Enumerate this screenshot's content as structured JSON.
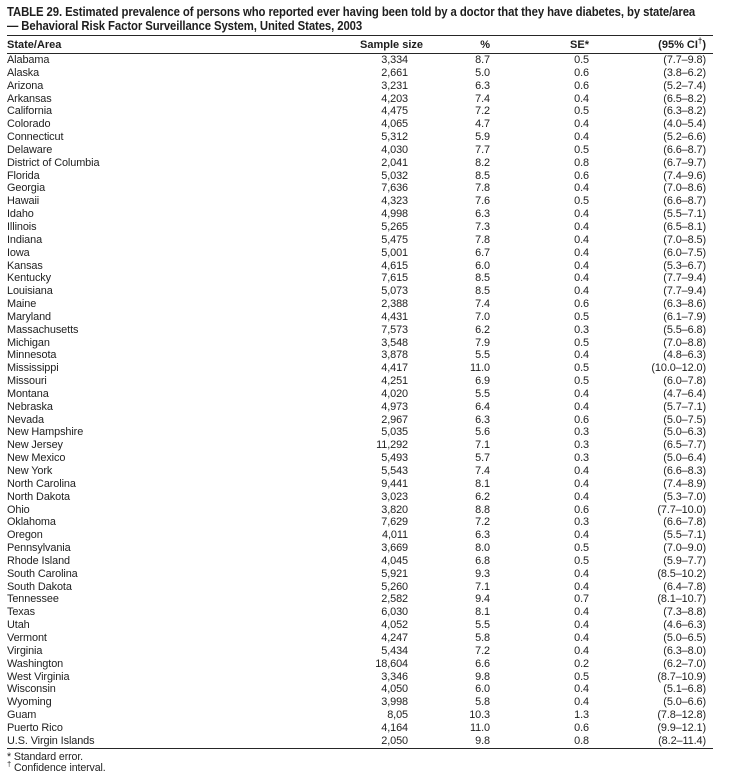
{
  "document": {
    "title_line1": "TABLE 29. Estimated prevalence of persons who reported ever having been told by a doctor that they have diabetes, by state/area",
    "title_line2": "— Behavioral Risk Factor Surveillance System, United States, 2003"
  },
  "table": {
    "columns": [
      "State/Area",
      "Sample size",
      "%",
      "SE*",
      "(95% CI†)"
    ],
    "rows": [
      [
        "Alabama",
        "3,334",
        "8.7",
        "0.5",
        "(7.7–9.8)"
      ],
      [
        "Alaska",
        "2,661",
        "5.0",
        "0.6",
        "(3.8–6.2)"
      ],
      [
        "Arizona",
        "3,231",
        "6.3",
        "0.6",
        "(5.2–7.4)"
      ],
      [
        "Arkansas",
        "4,203",
        "7.4",
        "0.4",
        "(6.5–8.2)"
      ],
      [
        "California",
        "4,475",
        "7.2",
        "0.5",
        "(6.3–8.2)"
      ],
      [
        "Colorado",
        "4,065",
        "4.7",
        "0.4",
        "(4.0–5.4)"
      ],
      [
        "Connecticut",
        "5,312",
        "5.9",
        "0.4",
        "(5.2–6.6)"
      ],
      [
        "Delaware",
        "4,030",
        "7.7",
        "0.5",
        "(6.6–8.7)"
      ],
      [
        "District of Columbia",
        "2,041",
        "8.2",
        "0.8",
        "(6.7–9.7)"
      ],
      [
        "Florida",
        "5,032",
        "8.5",
        "0.6",
        "(7.4–9.6)"
      ],
      [
        "Georgia",
        "7,636",
        "7.8",
        "0.4",
        "(7.0–8.6)"
      ],
      [
        "Hawaii",
        "4,323",
        "7.6",
        "0.5",
        "(6.6–8.7)"
      ],
      [
        "Idaho",
        "4,998",
        "6.3",
        "0.4",
        "(5.5–7.1)"
      ],
      [
        "Illinois",
        "5,265",
        "7.3",
        "0.4",
        "(6.5–8.1)"
      ],
      [
        "Indiana",
        "5,475",
        "7.8",
        "0.4",
        "(7.0–8.5)"
      ],
      [
        "Iowa",
        "5,001",
        "6.7",
        "0.4",
        "(6.0–7.5)"
      ],
      [
        "Kansas",
        "4,615",
        "6.0",
        "0.4",
        "(5.3–6.7)"
      ],
      [
        "Kentucky",
        "7,615",
        "8.5",
        "0.4",
        "(7.7–9.4)"
      ],
      [
        "Louisiana",
        "5,073",
        "8.5",
        "0.4",
        "(7.7–9.4)"
      ],
      [
        "Maine",
        "2,388",
        "7.4",
        "0.6",
        "(6.3–8.6)"
      ],
      [
        "Maryland",
        "4,431",
        "7.0",
        "0.5",
        "(6.1–7.9)"
      ],
      [
        "Massachusetts",
        "7,573",
        "6.2",
        "0.3",
        "(5.5–6.8)"
      ],
      [
        "Michigan",
        "3,548",
        "7.9",
        "0.5",
        "(7.0–8.8)"
      ],
      [
        "Minnesota",
        "3,878",
        "5.5",
        "0.4",
        "(4.8–6.3)"
      ],
      [
        "Mississippi",
        "4,417",
        "11.0",
        "0.5",
        "(10.0–12.0)"
      ],
      [
        "Missouri",
        "4,251",
        "6.9",
        "0.5",
        "(6.0–7.8)"
      ],
      [
        "Montana",
        "4,020",
        "5.5",
        "0.4",
        "(4.7–6.4)"
      ],
      [
        "Nebraska",
        "4,973",
        "6.4",
        "0.4",
        "(5.7–7.1)"
      ],
      [
        "Nevada",
        "2,967",
        "6.3",
        "0.6",
        "(5.0–7.5)"
      ],
      [
        "New Hampshire",
        "5,035",
        "5.6",
        "0.3",
        "(5.0–6.3)"
      ],
      [
        "New Jersey",
        "11,292",
        "7.1",
        "0.3",
        "(6.5–7.7)"
      ],
      [
        "New Mexico",
        "5,493",
        "5.7",
        "0.3",
        "(5.0–6.4)"
      ],
      [
        "New York",
        "5,543",
        "7.4",
        "0.4",
        "(6.6–8.3)"
      ],
      [
        "North Carolina",
        "9,441",
        "8.1",
        "0.4",
        "(7.4–8.9)"
      ],
      [
        "North Dakota",
        "3,023",
        "6.2",
        "0.4",
        "(5.3–7.0)"
      ],
      [
        "Ohio",
        "3,820",
        "8.8",
        "0.6",
        "(7.7–10.0)"
      ],
      [
        "Oklahoma",
        "7,629",
        "7.2",
        "0.3",
        "(6.6–7.8)"
      ],
      [
        "Oregon",
        "4,011",
        "6.3",
        "0.4",
        "(5.5–7.1)"
      ],
      [
        "Pennsylvania",
        "3,669",
        "8.0",
        "0.5",
        "(7.0–9.0)"
      ],
      [
        "Rhode Island",
        "4,045",
        "6.8",
        "0.5",
        "(5.9–7.7)"
      ],
      [
        "South Carolina",
        "5,921",
        "9.3",
        "0.4",
        "(8.5–10.2)"
      ],
      [
        "South Dakota",
        "5,260",
        "7.1",
        "0.4",
        "(6.4–7.8)"
      ],
      [
        "Tennessee",
        "2,582",
        "9.4",
        "0.7",
        "(8.1–10.7)"
      ],
      [
        "Texas",
        "6,030",
        "8.1",
        "0.4",
        "(7.3–8.8)"
      ],
      [
        "Utah",
        "4,052",
        "5.5",
        "0.4",
        "(4.6–6.3)"
      ],
      [
        "Vermont",
        "4,247",
        "5.8",
        "0.4",
        "(5.0–6.5)"
      ],
      [
        "Virginia",
        "5,434",
        "7.2",
        "0.4",
        "(6.3–8.0)"
      ],
      [
        "Washington",
        "18,604",
        "6.6",
        "0.2",
        "(6.2–7.0)"
      ],
      [
        "West Virginia",
        "3,346",
        "9.8",
        "0.5",
        "(8.7–10.9)"
      ],
      [
        "Wisconsin",
        "4,050",
        "6.0",
        "0.4",
        "(5.1–6.8)"
      ],
      [
        "Wyoming",
        "3,998",
        "5.8",
        "0.4",
        "(5.0–6.6)"
      ],
      [
        "Guam",
        "8,05",
        "10.3",
        "1.3",
        "(7.8–12.8)"
      ],
      [
        "Puerto Rico",
        "4,164",
        "11.0",
        "0.6",
        "(9.9–12.1)"
      ],
      [
        "U.S. Virgin Islands",
        "2,050",
        "9.8",
        "0.8",
        "(8.2–11.4)"
      ]
    ]
  },
  "footnotes": {
    "standard_error": "* Standard error.",
    "confidence_interval": "† Confidence interval."
  }
}
